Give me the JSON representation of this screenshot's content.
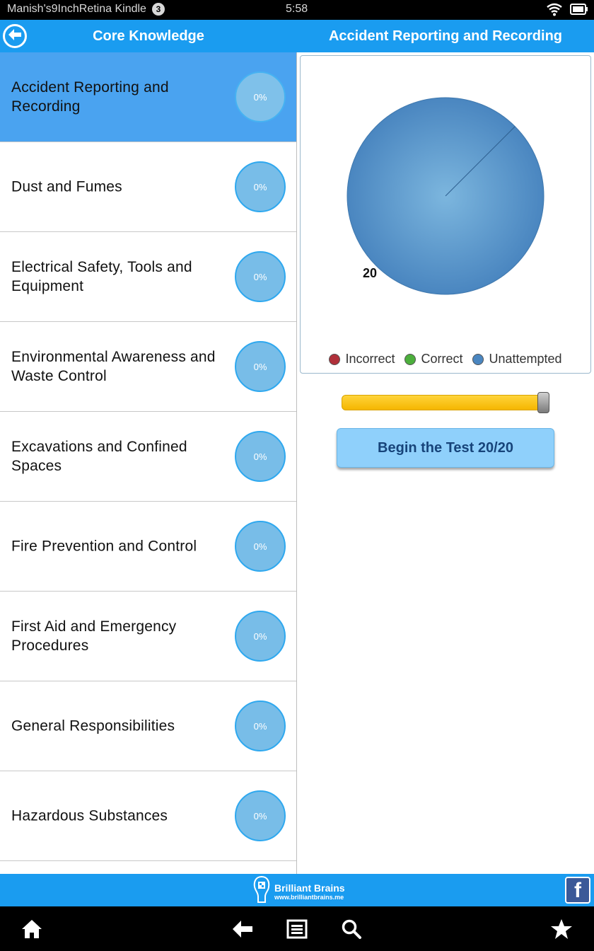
{
  "status_bar": {
    "device_name": "Manish's9InchRetina Kindle",
    "notification_count": "3",
    "time": "5:58"
  },
  "header": {
    "left_title": "Core Knowledge",
    "right_title": "Accident Reporting and Recording"
  },
  "topics": [
    {
      "label": "Accident Reporting and Recording",
      "progress": "0%",
      "selected": true
    },
    {
      "label": "Dust and Fumes",
      "progress": "0%"
    },
    {
      "label": "Electrical Safety, Tools and Equipment",
      "progress": "0%"
    },
    {
      "label": "Environmental Awareness and Waste Control",
      "progress": "0%"
    },
    {
      "label": "Excavations and Confined Spaces",
      "progress": "0%"
    },
    {
      "label": "Fire Prevention and Control",
      "progress": "0%"
    },
    {
      "label": "First Aid and Emergency Procedures",
      "progress": "0%"
    },
    {
      "label": "General Responsibilities",
      "progress": "0%"
    },
    {
      "label": "Hazardous Substances",
      "progress": "0%"
    }
  ],
  "chart_data": {
    "type": "pie",
    "title": "",
    "categories": [
      "Incorrect",
      "Correct",
      "Unattempted"
    ],
    "values": [
      0,
      0,
      20
    ],
    "colors": [
      "#b0303a",
      "#4caf3c",
      "#4a86c0"
    ],
    "data_labels": [
      "",
      "",
      "20"
    ],
    "legend": "bottom"
  },
  "slider": {
    "value": 20,
    "max": 20
  },
  "begin_button": {
    "label": "Begin the Test 20/20"
  },
  "brand": {
    "name": "Brilliant Brains",
    "url": "www.brilliantbrains.me"
  },
  "icons": {
    "back": "back-arrow-icon",
    "wifi": "wifi-icon",
    "battery": "battery-icon",
    "facebook": "facebook-icon",
    "home": "home-icon",
    "nav_back": "arrow-left-icon",
    "menu": "menu-list-icon",
    "search": "search-icon",
    "favorite": "star-icon"
  }
}
